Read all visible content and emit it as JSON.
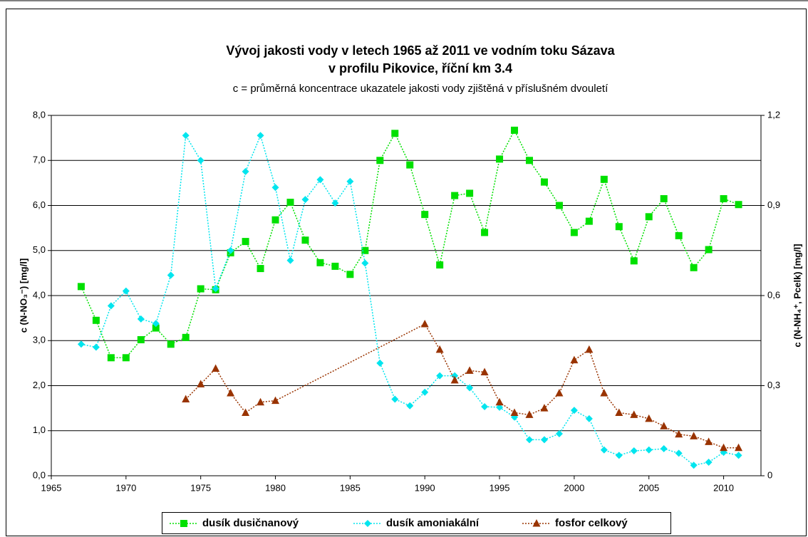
{
  "chart_data": {
    "type": "line",
    "title": "Vývoj jakosti vody v letech 1965 až 2011 ve vodním toku Sázava",
    "subtitle": "v profilu Pikovice, říční km 3.4",
    "annotation": "c = průměrná koncentrace ukazatele jakosti vody zjištěná v příslušném dvouletí",
    "ylabel": "c (N-NO₃⁻) [mg/l]",
    "y2label": "c (N-NH₄⁺, Pcelk) [mg/l]",
    "xlim": [
      1965,
      2012.5
    ],
    "xticks": [
      1965,
      1970,
      1975,
      1980,
      1985,
      1990,
      1995,
      2000,
      2005,
      2010
    ],
    "ylim": [
      0,
      8
    ],
    "yticks": [
      {
        "value": 0,
        "label": "0,0"
      },
      {
        "value": 1,
        "label": "1,0"
      },
      {
        "value": 2,
        "label": "2,0"
      },
      {
        "value": 3,
        "label": "3,0"
      },
      {
        "value": 4,
        "label": "4,0"
      },
      {
        "value": 5,
        "label": "5,0"
      },
      {
        "value": 6,
        "label": "6,0"
      },
      {
        "value": 7,
        "label": "7,0"
      },
      {
        "value": 8,
        "label": "8,0"
      }
    ],
    "y2lim": [
      0,
      1.2
    ],
    "y2ticks": [
      0,
      {
        "value": 0.3,
        "label": "0,3"
      },
      {
        "value": 0.6,
        "label": "0,6"
      },
      {
        "value": 0.9,
        "label": "0,9"
      },
      {
        "value": 1.2,
        "label": "1,2"
      }
    ],
    "grid": true,
    "legend": "bottom",
    "series": [
      {
        "name": "dusík dusičnanový",
        "color": "#00e000",
        "marker": "square",
        "x": [
          1967,
          1968,
          1969,
          1970,
          1971,
          1972,
          1973,
          1974,
          1975,
          1976,
          1977,
          1978,
          1979,
          1980,
          1981,
          1982,
          1983,
          1984,
          1985,
          1986,
          1987,
          1988,
          1989,
          1990,
          1991,
          1992,
          1993,
          1994,
          1995,
          1996,
          1997,
          1998,
          1999,
          2000,
          2001,
          2002,
          2003,
          2004,
          2005,
          2006,
          2007,
          2008,
          2009,
          2010,
          2011
        ],
        "values": [
          4.2,
          3.45,
          2.62,
          2.62,
          3.02,
          3.28,
          2.92,
          3.07,
          4.15,
          4.13,
          4.95,
          5.2,
          4.6,
          5.68,
          6.07,
          5.23,
          4.73,
          4.65,
          4.47,
          5.0,
          7.0,
          7.6,
          6.9,
          5.8,
          4.68,
          6.22,
          6.27,
          5.4,
          7.03,
          7.67,
          7.0,
          6.52,
          6.0,
          5.4,
          5.65,
          6.58,
          5.53,
          4.77,
          5.75,
          6.15,
          5.33,
          4.62,
          5.02,
          6.15,
          6.02
        ]
      },
      {
        "name": "dusík amoniakální",
        "color": "#00e5ee",
        "marker": "diamond",
        "axis": "y2",
        "x": [
          1967,
          1968,
          1969,
          1970,
          1971,
          1972,
          1973,
          1974,
          1975,
          1976,
          1977,
          1978,
          1979,
          1980,
          1981,
          1982,
          1983,
          1984,
          1985,
          1986,
          1987,
          1988,
          1989,
          1990,
          1991,
          1992,
          1993,
          1994,
          1995,
          1996,
          1997,
          1998,
          1999,
          2000,
          2001,
          2002,
          2003,
          2004,
          2005,
          2006,
          2007,
          2008,
          2009,
          2010,
          2011
        ],
        "values": [
          0.438,
          0.428,
          0.566,
          0.615,
          0.522,
          0.507,
          0.668,
          1.133,
          1.05,
          0.623,
          0.75,
          1.013,
          1.133,
          0.96,
          0.717,
          0.92,
          0.986,
          0.908,
          0.98,
          0.708,
          0.375,
          0.255,
          0.233,
          0.278,
          0.333,
          0.333,
          0.293,
          0.23,
          0.228,
          0.195,
          0.12,
          0.12,
          0.14,
          0.218,
          0.19,
          0.086,
          0.068,
          0.083,
          0.086,
          0.09,
          0.075,
          0.035,
          0.045,
          0.078,
          0.068
        ]
      },
      {
        "name": "fosfor celkový",
        "color": "#993300",
        "marker": "triangle",
        "axis": "y2",
        "x": [
          1974,
          1975,
          1976,
          1977,
          1978,
          1979,
          1980,
          1990,
          1991,
          1992,
          1993,
          1994,
          1995,
          1996,
          1997,
          1998,
          1999,
          2000,
          2001,
          2002,
          2003,
          2004,
          2005,
          2006,
          2007,
          2008,
          2009,
          2010,
          2011
        ],
        "values": [
          0.255,
          0.305,
          0.357,
          0.275,
          0.21,
          0.245,
          0.25,
          0.505,
          0.42,
          0.318,
          0.35,
          0.345,
          0.245,
          0.21,
          0.203,
          0.225,
          0.275,
          0.385,
          0.42,
          0.275,
          0.21,
          0.203,
          0.19,
          0.165,
          0.138,
          0.132,
          0.113,
          0.093,
          0.093
        ]
      }
    ]
  }
}
